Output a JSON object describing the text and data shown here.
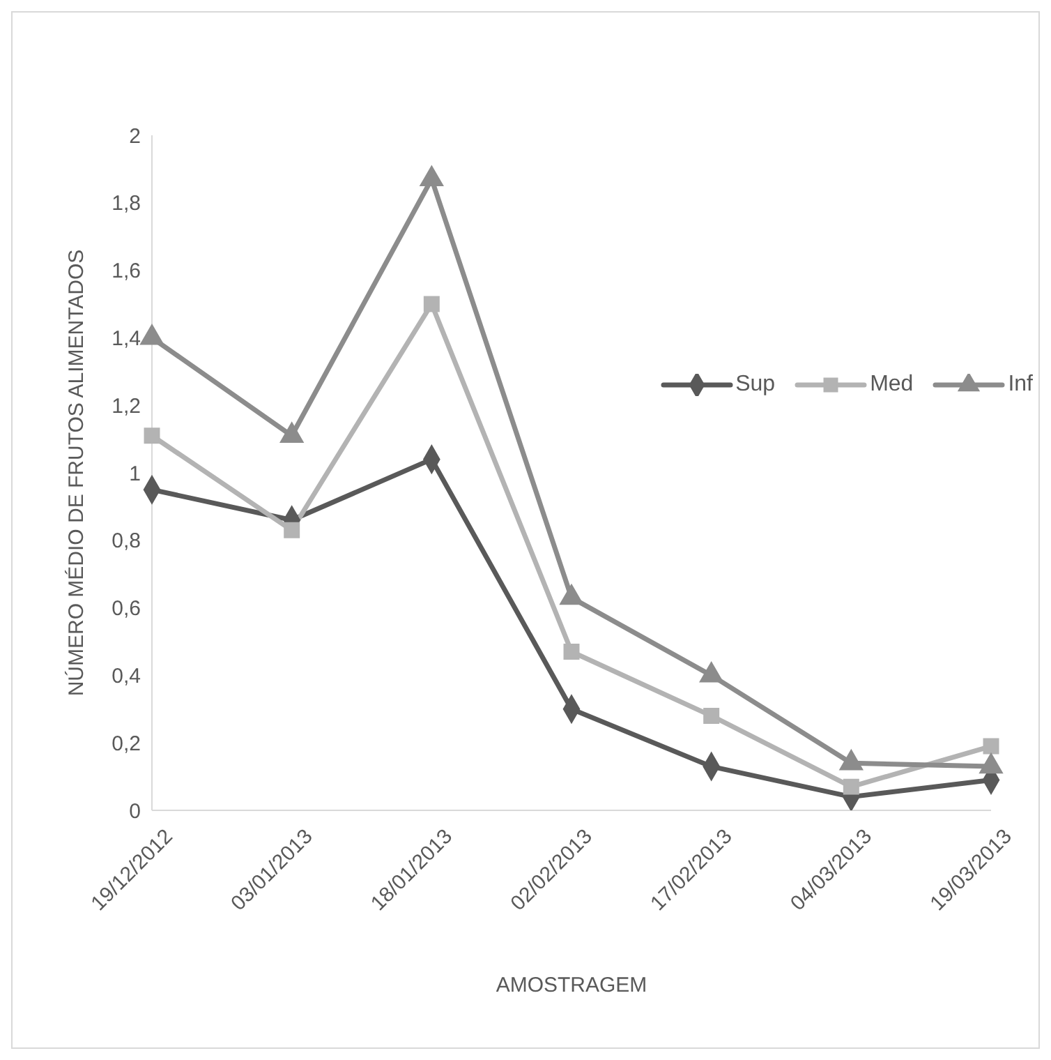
{
  "chart_data": {
    "type": "line",
    "xlabel": "AMOSTRAGEM",
    "ylabel": "NÚMERO MÉDIO DE FRUTOS ALIMENTADOS",
    "categories": [
      "19/12/2012",
      "03/01/2013",
      "18/01/2013",
      "02/02/2013",
      "17/02/2013",
      "04/03/2013",
      "19/03/2013"
    ],
    "series": [
      {
        "name": "Sup",
        "color": "#595959",
        "marker": "diamond",
        "values": [
          0.95,
          0.86,
          1.04,
          0.3,
          0.13,
          0.04,
          0.09
        ]
      },
      {
        "name": "Med",
        "color": "#b3b3b3",
        "marker": "square",
        "values": [
          1.11,
          0.83,
          1.5,
          0.47,
          0.28,
          0.07,
          0.19
        ]
      },
      {
        "name": "Inf",
        "color": "#8c8c8c",
        "marker": "triangle",
        "values": [
          1.4,
          1.11,
          1.87,
          0.63,
          0.4,
          0.14,
          0.13
        ]
      }
    ],
    "ylim": [
      0,
      2
    ],
    "yticks": [
      0,
      {
        "value": 0.2,
        "label": "0,2"
      },
      {
        "value": 0.4,
        "label": "0,4"
      },
      {
        "value": 0.6,
        "label": "0,6"
      },
      {
        "value": 0.8,
        "label": "0,8"
      },
      1,
      {
        "value": 1.2,
        "label": "1,2"
      },
      {
        "value": 1.4,
        "label": "1,4"
      },
      {
        "value": 1.6,
        "label": "1,6"
      },
      {
        "value": 1.8,
        "label": "1,8"
      },
      2
    ],
    "grid": false,
    "legend": "right",
    "line_style": "solid"
  }
}
